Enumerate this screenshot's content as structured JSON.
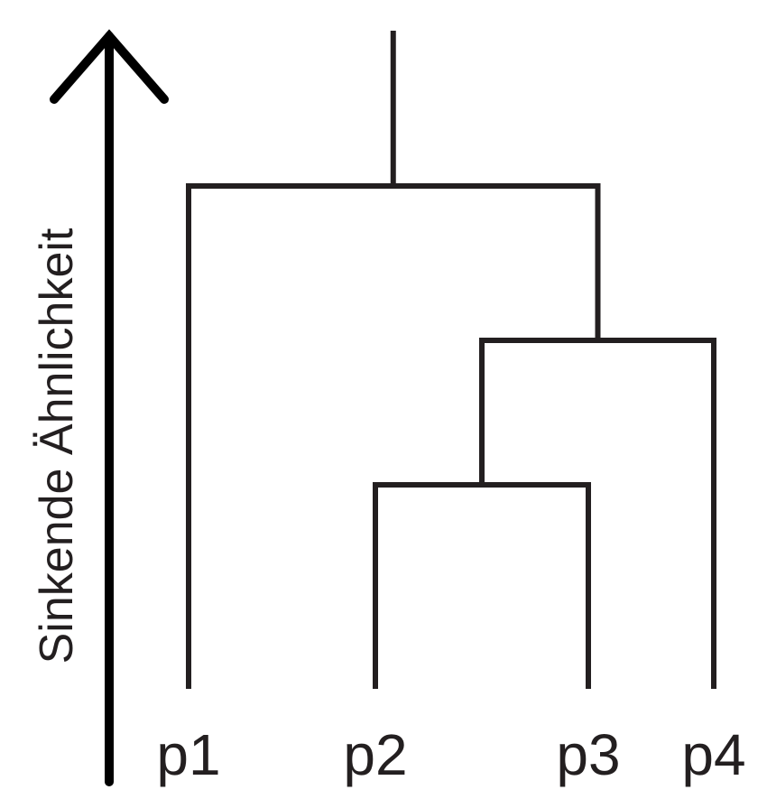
{
  "diagram": {
    "type": "dendrogram",
    "axis_label": "Sinkende Ähnlichkeit",
    "leaves": [
      {
        "id": "p1",
        "label": "p1"
      },
      {
        "id": "p2",
        "label": "p2"
      },
      {
        "id": "p3",
        "label": "p3"
      },
      {
        "id": "p4",
        "label": "p4"
      }
    ],
    "merges": [
      {
        "id": "m1",
        "children": [
          "p2",
          "p3"
        ],
        "height": 1
      },
      {
        "id": "m2",
        "children": [
          "m1",
          "p4"
        ],
        "height": 2
      },
      {
        "id": "m3",
        "children": [
          "p1",
          "m2"
        ],
        "height": 3
      }
    ],
    "colors": {
      "stroke": "#231f20",
      "background": "#ffffff"
    }
  }
}
